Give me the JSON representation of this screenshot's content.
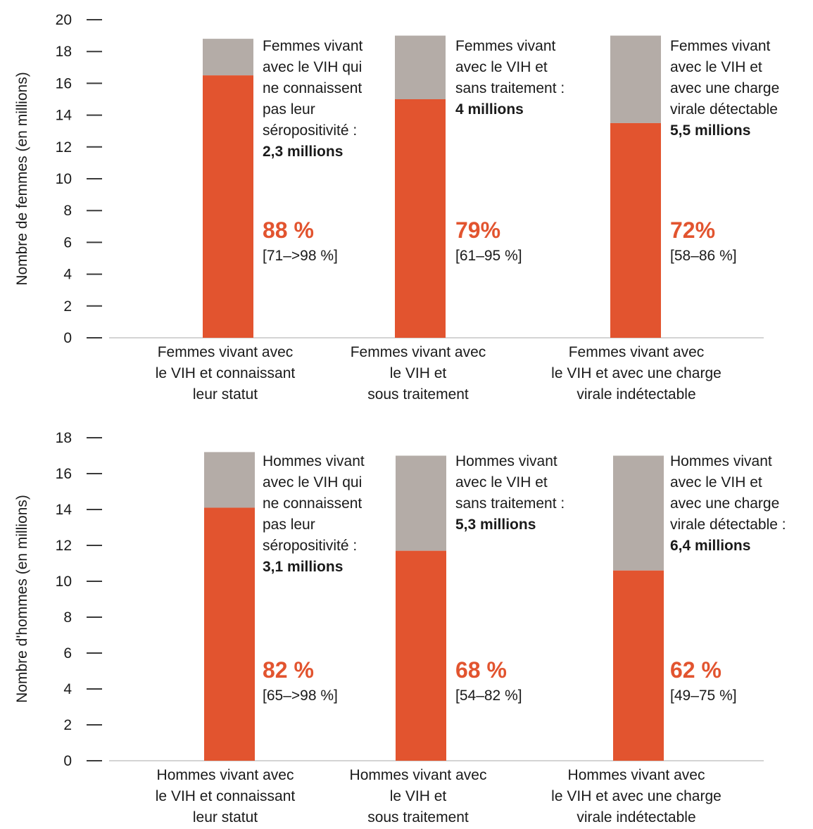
{
  "colors": {
    "filled": "#e2542f",
    "gap": "#b4aca7",
    "axis": "#3a3a3a",
    "baseline": "#d4d4d4"
  },
  "chart_data": [
    {
      "type": "bar",
      "stacked": true,
      "title": "",
      "xlabel": "",
      "ylabel": "Nombre de femmes (en millions)",
      "ylim": [
        0,
        20
      ],
      "yticks": [
        "0",
        "2",
        "4",
        "6",
        "8",
        "10",
        "12",
        "14",
        "16",
        "18",
        "20"
      ],
      "categories": [
        [
          "Femmes vivant avec",
          "le VIH et connaissant",
          "leur statut"
        ],
        [
          "Femmes vivant avec",
          "le VIH et",
          "sous traitement"
        ],
        [
          "Femmes vivant avec",
          "le VIH et avec une charge",
          "virale indétectable"
        ]
      ],
      "series": [
        {
          "values": [
            16.5,
            15.0,
            13.5
          ]
        },
        {
          "values": [
            2.3,
            4.0,
            5.5
          ]
        }
      ],
      "annotations": [
        {
          "lines": [
            "Femmes vivant",
            "avec le VIH qui",
            "ne connaissent",
            "pas leur",
            "séropositivité :"
          ],
          "bold": "2,3 millions",
          "percent": "88 %",
          "range": "[71–>98 %]"
        },
        {
          "lines": [
            "Femmes vivant",
            "avec le VIH et",
            "sans traitement :"
          ],
          "bold": "4 millions",
          "percent": "79%",
          "range": "[61–95 %]"
        },
        {
          "lines": [
            "Femmes vivant",
            "avec le VIH et",
            "avec une charge",
            "virale détectable"
          ],
          "bold": "5,5 millions",
          "percent": "72%",
          "range": "[58–86 %]"
        }
      ]
    },
    {
      "type": "bar",
      "stacked": true,
      "title": "",
      "xlabel": "",
      "ylabel": "Nombre d'hommes (en millions)",
      "ylim": [
        0,
        18
      ],
      "yticks": [
        "0",
        "2",
        "4",
        "6",
        "8",
        "10",
        "12",
        "14",
        "16",
        "18"
      ],
      "categories": [
        [
          "Hommes vivant avec",
          "le VIH et connaissant",
          "leur statut"
        ],
        [
          "Hommes vivant avec",
          "le VIH et",
          "sous traitement"
        ],
        [
          "Hommes vivant avec",
          "le VIH et avec une charge",
          "virale indétectable"
        ]
      ],
      "series": [
        {
          "values": [
            14.1,
            11.7,
            10.6
          ]
        },
        {
          "values": [
            3.1,
            5.3,
            6.4
          ]
        }
      ],
      "annotations": [
        {
          "lines": [
            "Hommes vivant",
            "avec le VIH qui",
            "ne connaissent",
            "pas leur",
            "séropositivité :"
          ],
          "bold": "3,1 millions",
          "percent": "82 %",
          "range": "[65–>98 %]"
        },
        {
          "lines": [
            "Hommes vivant",
            "avec le VIH et",
            "sans traitement :"
          ],
          "bold": "5,3 millions",
          "percent": "68 %",
          "range": "[54–82 %]"
        },
        {
          "lines": [
            "Hommes vivant",
            "avec le VIH et",
            "avec une charge",
            "virale détectable :"
          ],
          "bold": "6,4 millions",
          "percent": "62 %",
          "range": "[49–75 %]"
        }
      ]
    }
  ]
}
